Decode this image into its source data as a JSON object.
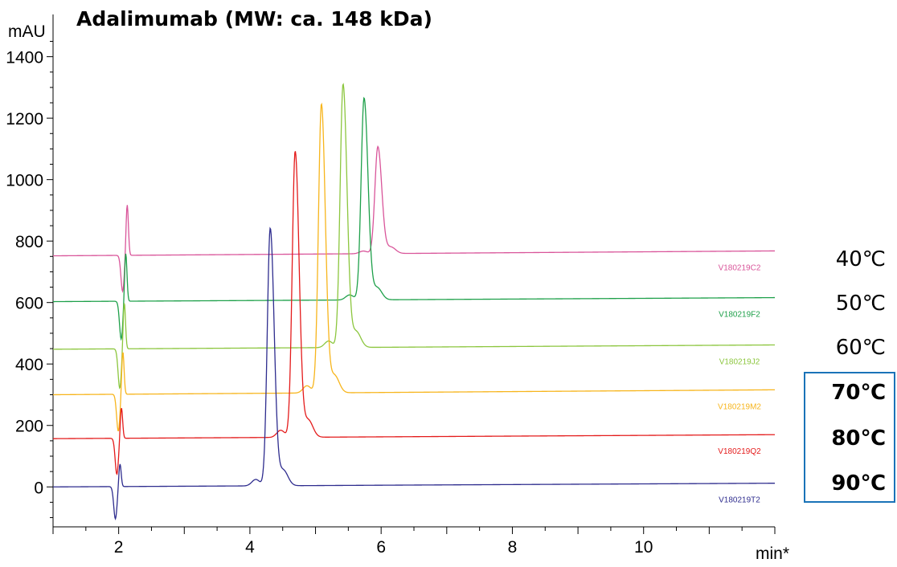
{
  "chart_data": {
    "type": "line",
    "title": "Adalimumab (MW: ca. 148 kDa)",
    "ylabel": "mAU",
    "xlabel": "min*",
    "xlim": [
      1.0,
      12.0
    ],
    "ylim": [
      -130,
      1480
    ],
    "x_ticks": [
      2,
      4,
      6,
      8,
      10
    ],
    "y_ticks": [
      0,
      200,
      400,
      600,
      800,
      1000,
      1200,
      1400
    ],
    "grid": false,
    "series": [
      {
        "name": "V180219C2",
        "temperature": "40℃",
        "color": "#d9559a",
        "baseline_start": 752,
        "baseline_end": 768,
        "injection_dip": 635,
        "injection_peak": 918,
        "peak_time": 5.95,
        "peak_height": 1100,
        "highlighted": false
      },
      {
        "name": "V180219F2",
        "temperature": "50℃",
        "color": "#1ea04a",
        "baseline_start": 603,
        "baseline_end": 616,
        "injection_dip": 480,
        "injection_peak": 760,
        "peak_time": 5.74,
        "peak_height": 1260,
        "highlighted": false
      },
      {
        "name": "V180219J2",
        "temperature": "60℃",
        "color": "#8cc63e",
        "baseline_start": 448,
        "baseline_end": 462,
        "injection_dip": 320,
        "injection_peak": 600,
        "peak_time": 5.42,
        "peak_height": 1305,
        "highlighted": false
      },
      {
        "name": "V180219M2",
        "temperature": "70℃",
        "color": "#f7b51c",
        "baseline_start": 300,
        "baseline_end": 316,
        "injection_dip": 180,
        "injection_peak": 440,
        "peak_time": 5.09,
        "peak_height": 1240,
        "highlighted": true
      },
      {
        "name": "V180219Q2",
        "temperature": "80℃",
        "color": "#e41b1b",
        "baseline_start": 157,
        "baseline_end": 170,
        "injection_dip": 40,
        "injection_peak": 258,
        "peak_time": 4.69,
        "peak_height": 1088,
        "highlighted": true
      },
      {
        "name": "V180219T2",
        "temperature": "90℃",
        "color": "#2e2c8e",
        "baseline_start": 0,
        "baseline_end": 12,
        "injection_dip": -105,
        "injection_peak": 75,
        "peak_time": 4.31,
        "peak_height": 838,
        "highlighted": true
      }
    ]
  },
  "legend_box_color": "#1a73b8",
  "highlight_text_color": "#1467ad"
}
